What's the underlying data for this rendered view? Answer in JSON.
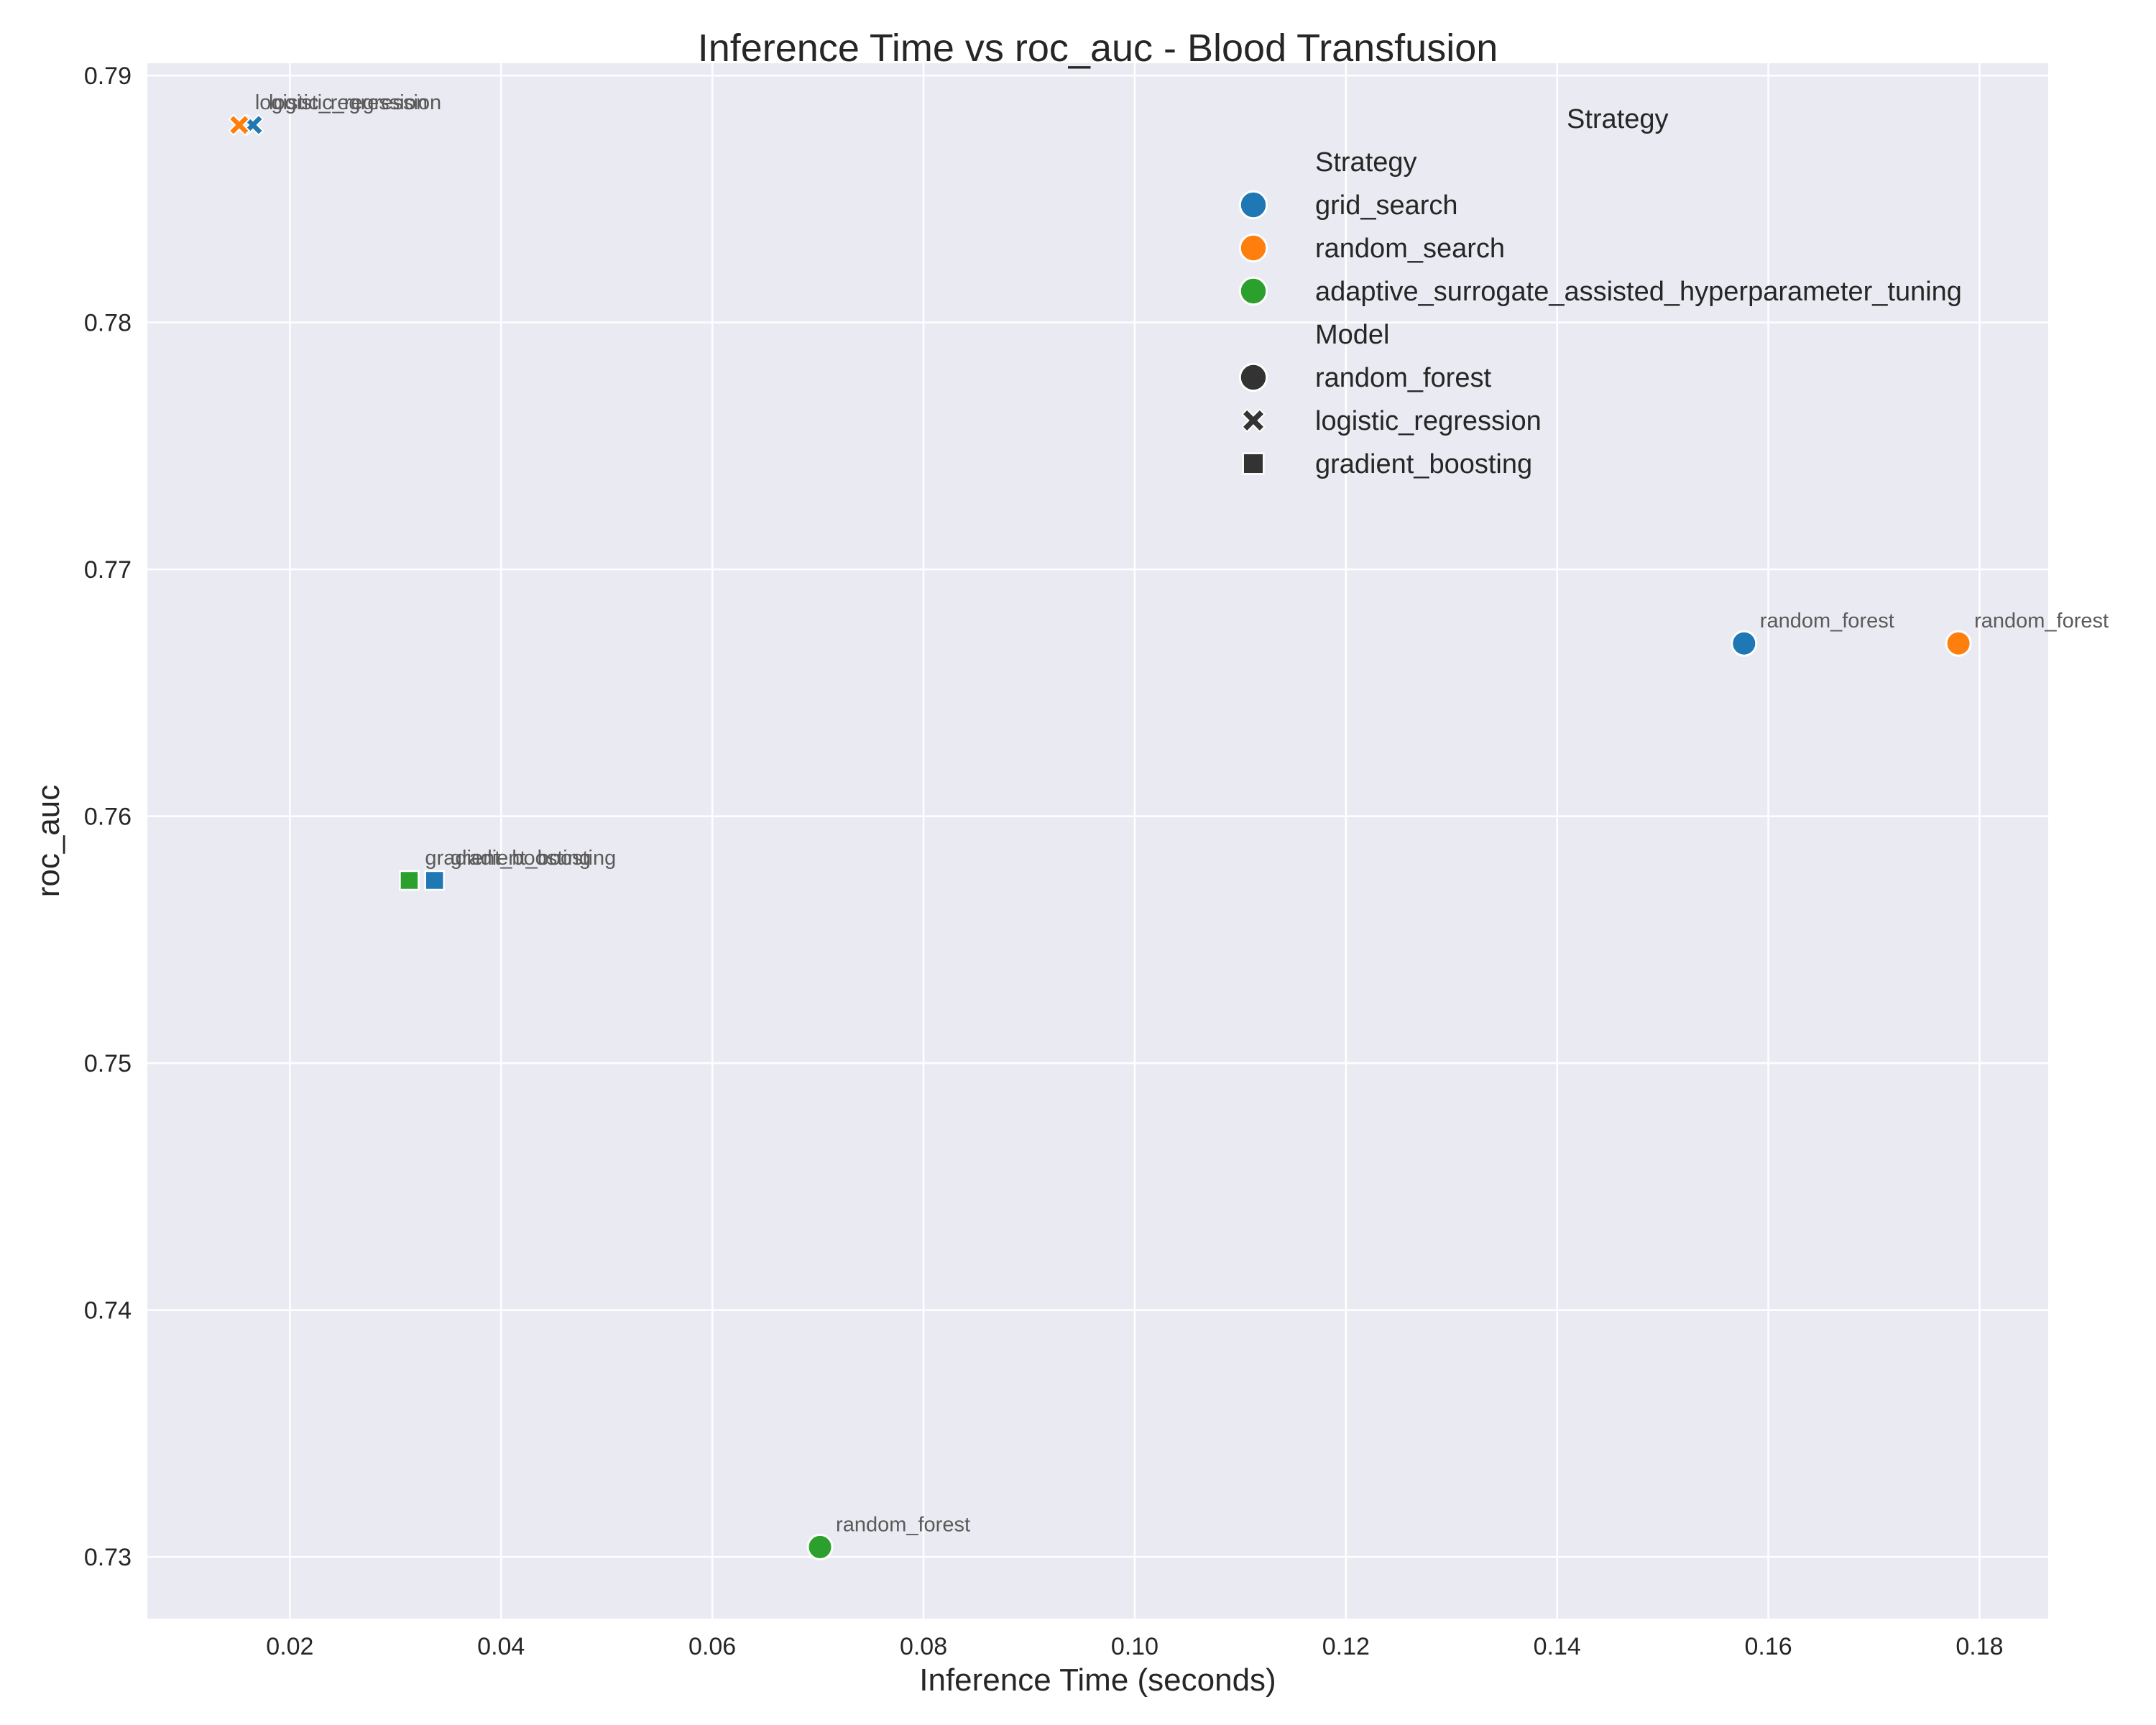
{
  "chart_data": {
    "type": "scatter",
    "title": "Inference Time vs roc_auc - Blood Transfusion",
    "xlabel": "Inference Time (seconds)",
    "ylabel": "roc_auc",
    "xlim": [
      0.0065,
      0.1865
    ],
    "ylim": [
      0.7275,
      0.7905
    ],
    "xticks": [
      0.02,
      0.04,
      0.06,
      0.08,
      0.1,
      0.12,
      0.14,
      0.16,
      0.18
    ],
    "xtick_labels": [
      "0.02",
      "0.04",
      "0.06",
      "0.08",
      "0.10",
      "0.12",
      "0.14",
      "0.16",
      "0.18"
    ],
    "yticks": [
      0.73,
      0.74,
      0.75,
      0.76,
      0.77,
      0.78,
      0.79
    ],
    "ytick_labels": [
      "0.73",
      "0.74",
      "0.75",
      "0.76",
      "0.77",
      "0.78",
      "0.79"
    ],
    "grid": true,
    "legend": {
      "placement": "top-right",
      "outer_title": "Strategy",
      "strategy_header": "Strategy",
      "model_header": "Model",
      "strategies": [
        {
          "name": "grid_search",
          "color": "#1f77b4"
        },
        {
          "name": "random_search",
          "color": "#ff7f0e"
        },
        {
          "name": "adaptive_surrogate_assisted_hyperparameter_tuning",
          "color": "#2ca02c"
        }
      ],
      "models": [
        {
          "name": "random_forest",
          "marker": "circle"
        },
        {
          "name": "logistic_regression",
          "marker": "x"
        },
        {
          "name": "gradient_boosting",
          "marker": "square"
        }
      ]
    },
    "points": [
      {
        "strategy": "grid_search",
        "model": "logistic_regression",
        "x": 0.0165,
        "y": 0.788,
        "label": "logistic_regression"
      },
      {
        "strategy": "random_search",
        "model": "logistic_regression",
        "x": 0.0152,
        "y": 0.788,
        "label": "logistic_regression"
      },
      {
        "strategy": "adaptive_surrogate_assisted_hyperparameter_tuning",
        "model": "gradient_boosting",
        "x": 0.0313,
        "y": 0.7574,
        "label": "gradient_boosting"
      },
      {
        "strategy": "grid_search",
        "model": "gradient_boosting",
        "x": 0.0337,
        "y": 0.7574,
        "label": "gradient_boosting"
      },
      {
        "strategy": "grid_search",
        "model": "random_forest",
        "x": 0.1577,
        "y": 0.767,
        "label": "random_forest"
      },
      {
        "strategy": "random_search",
        "model": "random_forest",
        "x": 0.178,
        "y": 0.767,
        "label": "random_forest"
      },
      {
        "strategy": "adaptive_surrogate_assisted_hyperparameter_tuning",
        "model": "random_forest",
        "x": 0.0702,
        "y": 0.7304,
        "label": "random_forest"
      }
    ]
  }
}
